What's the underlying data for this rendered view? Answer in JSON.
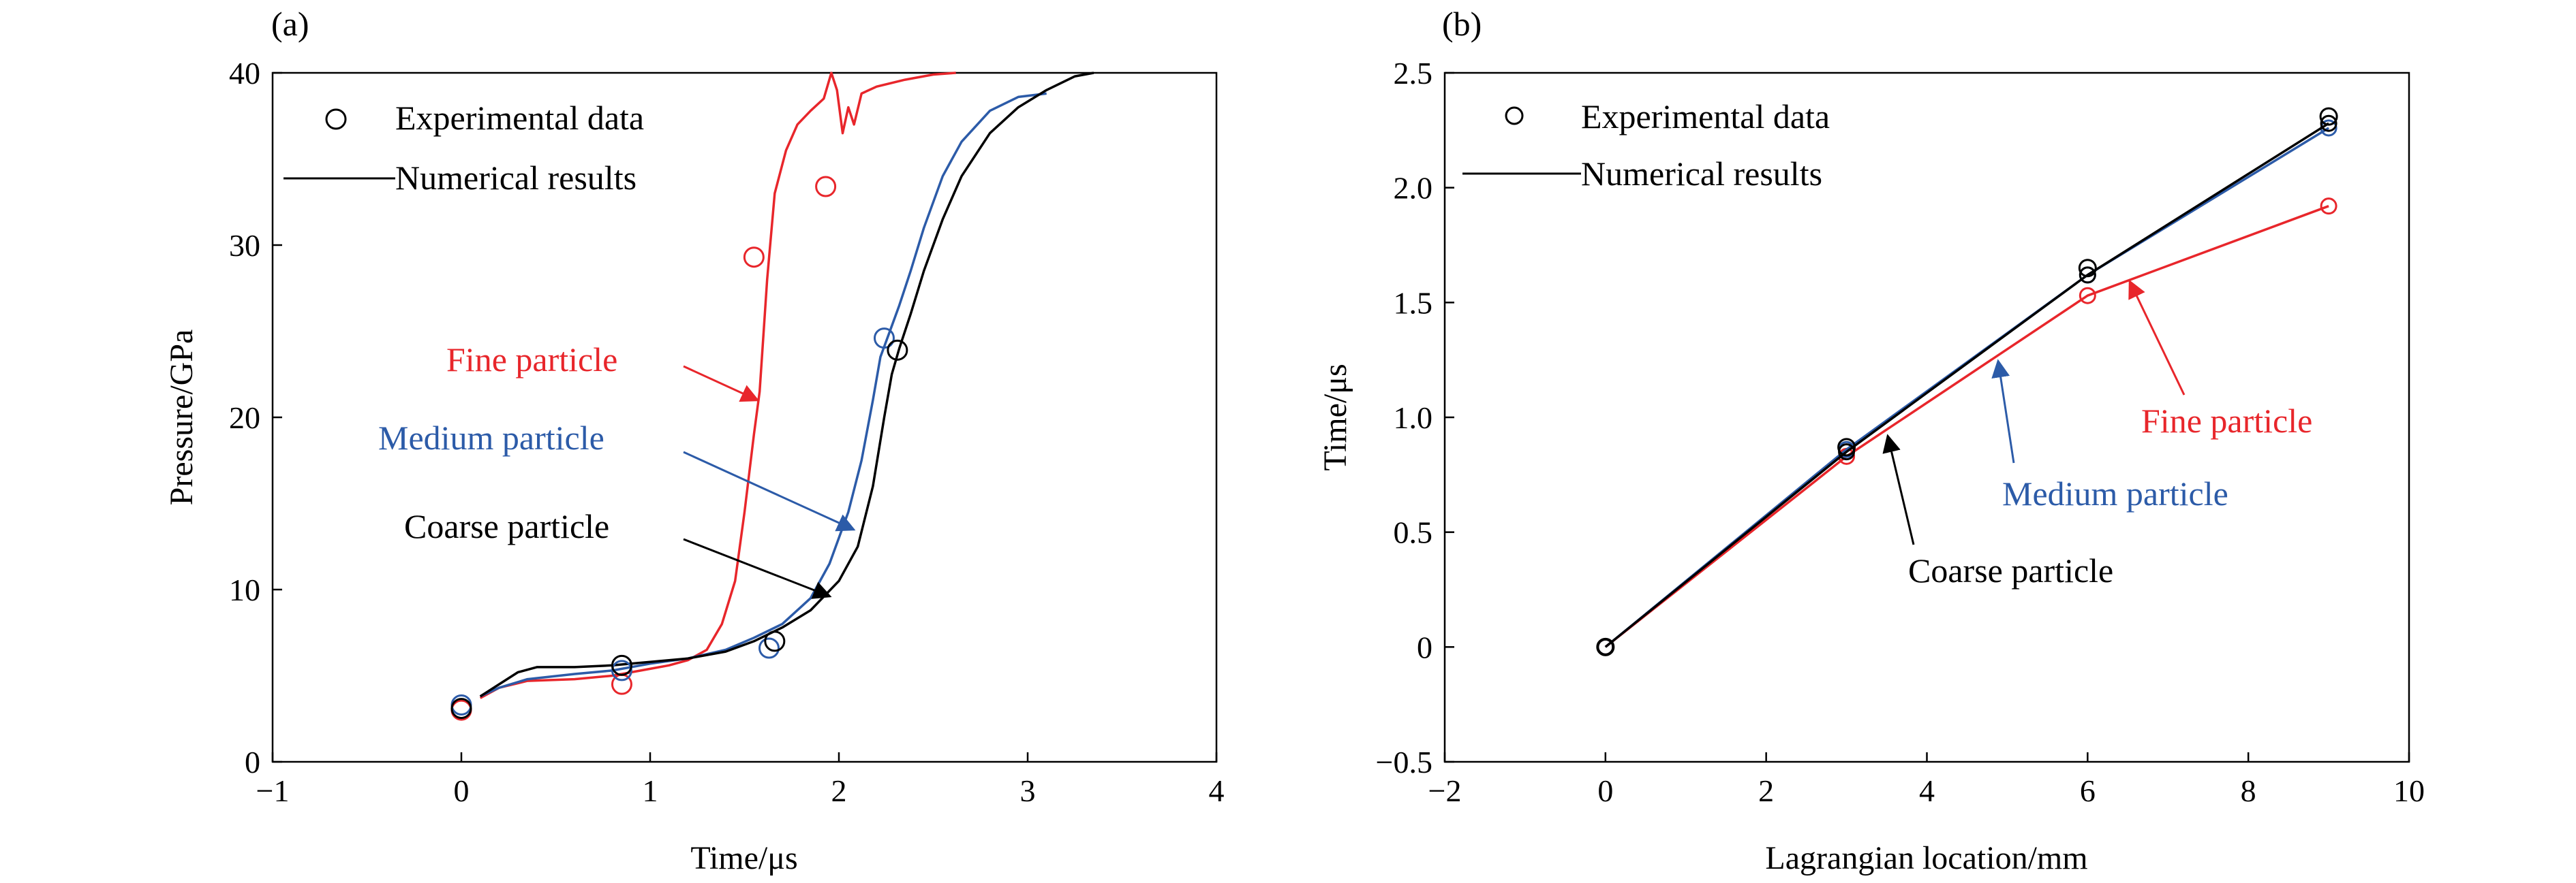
{
  "colors": {
    "experimental_marker": "#000000",
    "fine": "#e8262b",
    "medium": "#2c5ba8",
    "coarse": "#000000"
  },
  "chart_data": [
    {
      "type": "line",
      "panel_label": "(a)",
      "xlabel": "Time/μs",
      "ylabel": "Pressure/GPa",
      "xlim": [
        -1,
        4
      ],
      "ylim": [
        0,
        40
      ],
      "xticks": [
        -1,
        0,
        1,
        2,
        3,
        4
      ],
      "yticks": [
        0,
        10,
        20,
        30,
        40
      ],
      "xtick_labels": [
        "−1",
        "0",
        "1",
        "2",
        "3",
        "4"
      ],
      "ytick_labels": [
        "0",
        "10",
        "20",
        "30",
        "40"
      ],
      "grid": false,
      "legend": {
        "position": "top-left",
        "entries": [
          {
            "label": "Experimental data",
            "marker": "open-circle"
          },
          {
            "label": "Numerical results",
            "marker": "line"
          }
        ]
      },
      "series": [
        {
          "name": "Fine particle",
          "color_key": "fine",
          "line": [
            [
              0.1,
              3.7
            ],
            [
              0.2,
              4.3
            ],
            [
              0.35,
              4.7
            ],
            [
              0.6,
              4.8
            ],
            [
              0.8,
              5.0
            ],
            [
              1.0,
              5.4
            ],
            [
              1.1,
              5.6
            ],
            [
              1.2,
              5.9
            ],
            [
              1.3,
              6.5
            ],
            [
              1.38,
              8.0
            ],
            [
              1.45,
              10.5
            ],
            [
              1.5,
              14.5
            ],
            [
              1.55,
              19.0
            ],
            [
              1.58,
              21.5
            ],
            [
              1.62,
              28.0
            ],
            [
              1.66,
              33.0
            ],
            [
              1.72,
              35.5
            ],
            [
              1.78,
              37.0
            ],
            [
              1.85,
              37.8
            ],
            [
              1.92,
              38.5
            ],
            [
              1.96,
              40.0
            ],
            [
              1.99,
              39.0
            ],
            [
              2.02,
              36.5
            ],
            [
              2.05,
              38.0
            ],
            [
              2.08,
              37.0
            ],
            [
              2.12,
              38.8
            ],
            [
              2.2,
              39.2
            ],
            [
              2.35,
              39.6
            ],
            [
              2.5,
              39.9
            ],
            [
              2.62,
              40.0
            ]
          ],
          "points": [
            [
              0.0,
              3.0
            ],
            [
              0.85,
              4.5
            ],
            [
              1.55,
              29.3
            ],
            [
              1.93,
              33.4
            ]
          ]
        },
        {
          "name": "Medium particle",
          "color_key": "medium",
          "line": [
            [
              0.1,
              3.8
            ],
            [
              0.2,
              4.3
            ],
            [
              0.35,
              4.8
            ],
            [
              0.6,
              5.1
            ],
            [
              0.8,
              5.3
            ],
            [
              1.0,
              5.7
            ],
            [
              1.2,
              6.0
            ],
            [
              1.4,
              6.5
            ],
            [
              1.55,
              7.2
            ],
            [
              1.7,
              8.0
            ],
            [
              1.85,
              9.5
            ],
            [
              1.95,
              11.5
            ],
            [
              2.05,
              14.5
            ],
            [
              2.12,
              17.5
            ],
            [
              2.18,
              21.0
            ],
            [
              2.22,
              23.5
            ],
            [
              2.27,
              25.0
            ],
            [
              2.32,
              26.5
            ],
            [
              2.38,
              28.5
            ],
            [
              2.45,
              31.0
            ],
            [
              2.55,
              34.0
            ],
            [
              2.65,
              36.0
            ],
            [
              2.8,
              37.8
            ],
            [
              2.95,
              38.6
            ],
            [
              3.1,
              38.8
            ]
          ],
          "points": [
            [
              0.0,
              3.3
            ],
            [
              0.85,
              5.3
            ],
            [
              1.63,
              6.6
            ],
            [
              2.24,
              24.6
            ]
          ]
        },
        {
          "name": "Coarse particle",
          "color_key": "coarse",
          "line": [
            [
              0.1,
              3.8
            ],
            [
              0.2,
              4.5
            ],
            [
              0.3,
              5.2
            ],
            [
              0.4,
              5.5
            ],
            [
              0.6,
              5.5
            ],
            [
              0.8,
              5.6
            ],
            [
              1.0,
              5.8
            ],
            [
              1.2,
              6.0
            ],
            [
              1.4,
              6.4
            ],
            [
              1.55,
              7.0
            ],
            [
              1.7,
              7.8
            ],
            [
              1.85,
              8.8
            ],
            [
              2.0,
              10.5
            ],
            [
              2.1,
              12.5
            ],
            [
              2.18,
              16.0
            ],
            [
              2.24,
              20.0
            ],
            [
              2.28,
              22.5
            ],
            [
              2.32,
              24.0
            ],
            [
              2.38,
              26.0
            ],
            [
              2.45,
              28.5
            ],
            [
              2.55,
              31.5
            ],
            [
              2.65,
              34.0
            ],
            [
              2.8,
              36.5
            ],
            [
              2.95,
              38.0
            ],
            [
              3.1,
              39.0
            ],
            [
              3.25,
              39.8
            ],
            [
              3.35,
              40.0
            ]
          ],
          "points": [
            [
              0.0,
              3.1
            ],
            [
              0.85,
              5.6
            ],
            [
              1.66,
              7.0
            ],
            [
              2.31,
              23.9
            ]
          ]
        }
      ],
      "annotations": [
        {
          "text": "Fine particle",
          "color_key": "fine",
          "arrow_to": [
            1.58,
            20.5
          ]
        },
        {
          "text": "Medium particle",
          "color_key": "medium",
          "arrow_to": [
            2.09,
            13.5
          ]
        },
        {
          "text": "Coarse particle",
          "color_key": "coarse",
          "arrow_to": [
            2.0,
            9.6
          ]
        }
      ]
    },
    {
      "type": "line",
      "panel_label": "(b)",
      "xlabel": "Lagrangian location/mm",
      "ylabel": "Time/μs",
      "xlim": [
        -2,
        10
      ],
      "ylim": [
        -0.5,
        2.5
      ],
      "xticks": [
        -2,
        0,
        2,
        4,
        6,
        8,
        10
      ],
      "yticks": [
        -0.5,
        0,
        0.5,
        1.0,
        1.5,
        2.0,
        2.5
      ],
      "xtick_labels": [
        "−2",
        "0",
        "2",
        "4",
        "6",
        "8",
        "10"
      ],
      "ytick_labels": [
        "−0.5",
        "0",
        "0.5",
        "1.0",
        "1.5",
        "2.0",
        "2.5"
      ],
      "grid": false,
      "legend": {
        "position": "top-left",
        "entries": [
          {
            "label": "Experimental data",
            "marker": "open-circle"
          },
          {
            "label": "Numerical results",
            "marker": "line"
          }
        ]
      },
      "experimental": {
        "x": [
          0,
          3,
          6,
          9
        ],
        "y": [
          0,
          0.87,
          1.65,
          2.31
        ]
      },
      "series": [
        {
          "name": "Fine particle",
          "color_key": "fine",
          "x": [
            0,
            3,
            6,
            9
          ],
          "y": [
            0,
            0.83,
            1.53,
            1.92
          ]
        },
        {
          "name": "Medium particle",
          "color_key": "medium",
          "x": [
            0,
            3,
            6,
            9
          ],
          "y": [
            0,
            0.86,
            1.62,
            2.26
          ]
        },
        {
          "name": "Coarse particle",
          "color_key": "coarse",
          "x": [
            0,
            3,
            6,
            9
          ],
          "y": [
            0,
            0.85,
            1.62,
            2.28
          ]
        }
      ],
      "annotations": [
        {
          "text": "Fine particle",
          "color_key": "fine",
          "arrow_to": [
            6.5,
            1.58
          ]
        },
        {
          "text": "Medium particle",
          "color_key": "medium",
          "arrow_to": [
            4.85,
            1.32
          ]
        },
        {
          "text": "Coarse particle",
          "color_key": "coarse",
          "arrow_to": [
            3.55,
            0.98
          ]
        }
      ]
    }
  ]
}
